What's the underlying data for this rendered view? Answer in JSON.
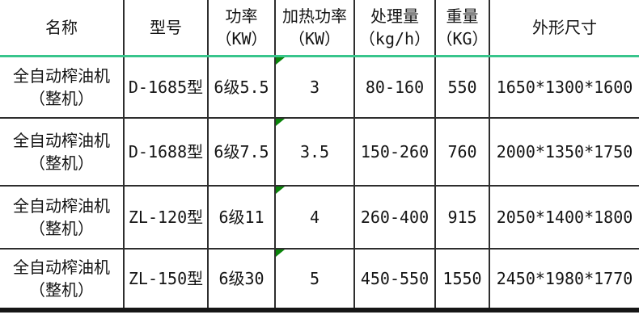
{
  "colors": {
    "header_underline": "#38c58c",
    "note_indicator": "#0a840a",
    "grid": "#2e2e2e"
  },
  "table": {
    "headers": [
      "名称",
      "型号",
      "功率\n（KW）",
      "加热功率\n（KW）",
      "处理量\n（kg/h）",
      "重量\n（KG）",
      "外形尺寸"
    ],
    "rows": [
      [
        "全自动榨油机\n（整机）",
        "D-1685型",
        "6级5.5",
        "3",
        "80-160",
        "550",
        "1650*1300*1600"
      ],
      [
        "全自动榨油机\n（整机）",
        "D-1688型",
        "6级7.5",
        "3.5",
        "150-260",
        "760",
        "2000*1350*1750"
      ],
      [
        "全自动榨油机\n（整机）",
        "ZL-120型",
        "6级11",
        "4",
        "260-400",
        "915",
        "2050*1400*1800"
      ],
      [
        "全自动榨油机\n（整机）",
        "ZL-150型",
        "6级30",
        "5",
        "450-550",
        "1550",
        "2450*1980*1770"
      ]
    ]
  }
}
